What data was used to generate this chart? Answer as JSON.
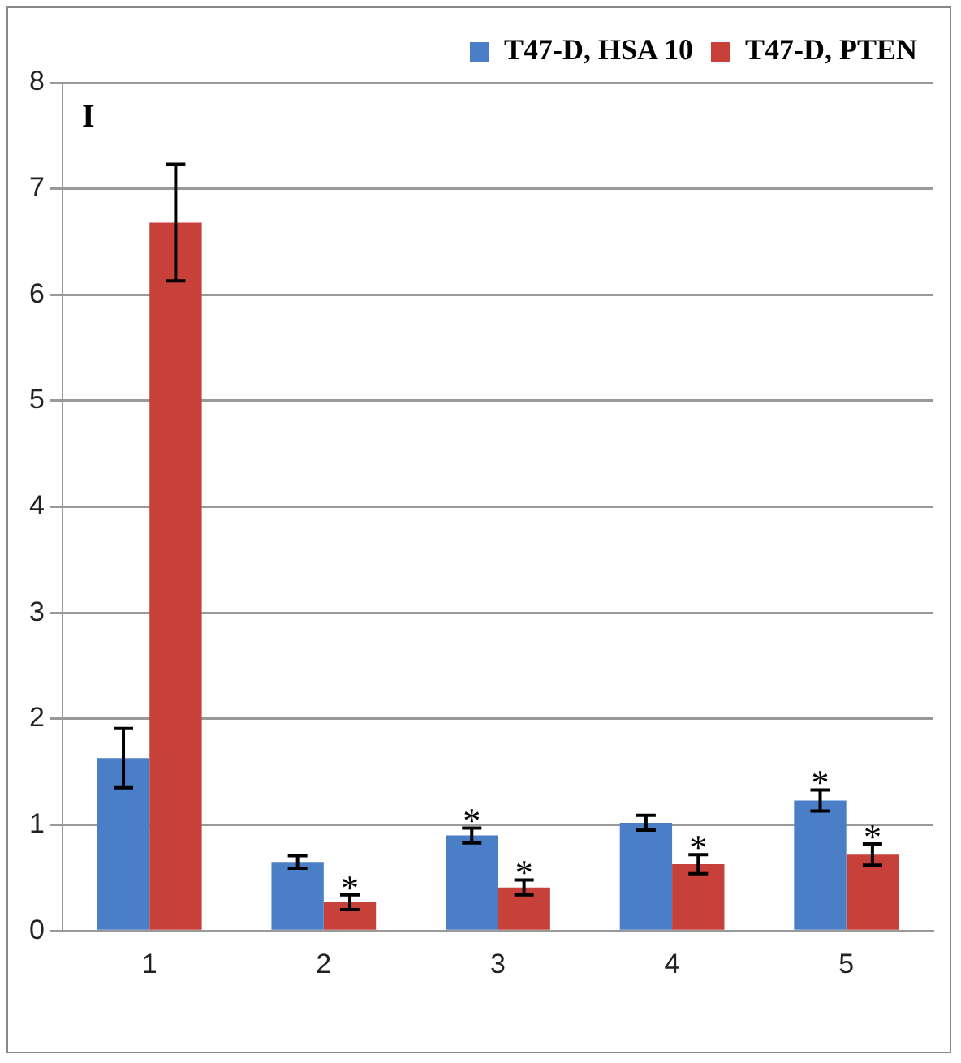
{
  "chart_data": {
    "type": "bar",
    "categories": [
      "1",
      "2",
      "3",
      "4",
      "5"
    ],
    "series": [
      {
        "name": "T47-D, HSA 10",
        "color": "#4a7fc8",
        "values": [
          1.63,
          0.65,
          0.9,
          1.02,
          1.23
        ],
        "errors": [
          0.28,
          0.06,
          0.07,
          0.07,
          0.1
        ]
      },
      {
        "name": "T47-D, PTEN",
        "color": "#c8403a",
        "values": [
          6.68,
          0.27,
          0.41,
          0.63,
          0.72
        ],
        "errors": [
          0.55,
          0.07,
          0.07,
          0.09,
          0.1
        ]
      }
    ],
    "ylim": [
      0,
      8
    ],
    "yticks": [
      0,
      1,
      2,
      3,
      4,
      5,
      6,
      7,
      8
    ],
    "grid": "y",
    "legend": "top right",
    "annotations": [
      "I",
      {
        "text": "*",
        "x": "2",
        "y": 0.27
      },
      {
        "text": "*",
        "x": "3",
        "y": 0.9
      },
      {
        "text": "*",
        "x": "3",
        "y": 0.41
      },
      {
        "text": "*",
        "x": "4",
        "y": 0.63
      },
      {
        "text": "*",
        "x": "5",
        "y": 1.23
      },
      {
        "text": "*",
        "x": "5",
        "y": 0.72
      }
    ]
  }
}
